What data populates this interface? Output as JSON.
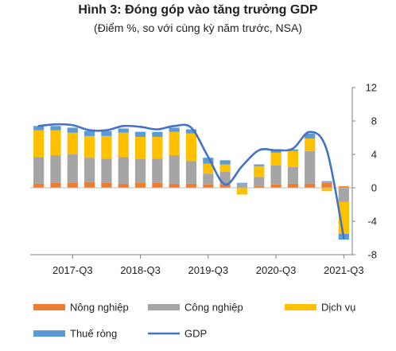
{
  "header": {
    "title": "Hình 3: Đóng góp vào tăng trưởng GDP",
    "subtitle": "(Điểm %, so với cùng kỳ năm trước, NSA)"
  },
  "colors": {
    "nong_nghiep": "#ED7D31",
    "cong_nghiep": "#A5A5A5",
    "dich_vu": "#FFC000",
    "thue_rong": "#5B9BD5",
    "gdp": "#4472C4"
  },
  "chart_data": {
    "type": "bar",
    "stacked": true,
    "categories": [
      "2017-Q1",
      "2017-Q2",
      "2017-Q3",
      "2017-Q4",
      "2018-Q1",
      "2018-Q2",
      "2018-Q3",
      "2018-Q4",
      "2019-Q1",
      "2019-Q2",
      "2019-Q3",
      "2019-Q4",
      "2020-Q1",
      "2020-Q2",
      "2020-Q3",
      "2020-Q4",
      "2021-Q1",
      "2021-Q2",
      "2021-Q3"
    ],
    "x_tick_labels": [
      {
        "category": "2017-Q3",
        "label": "2017-Q3"
      },
      {
        "category": "2018-Q3",
        "label": "2018-Q3"
      },
      {
        "category": "2019-Q3",
        "label": "2019-Q3"
      },
      {
        "category": "2020-Q3",
        "label": "2020-Q3"
      },
      {
        "category": "2021-Q3",
        "label": "2021-Q3"
      }
    ],
    "series": [
      {
        "name": "Nông nghiệp",
        "key": "nong_nghiep",
        "values": [
          0.5,
          0.6,
          0.6,
          0.7,
          0.6,
          0.5,
          0.6,
          0.6,
          0.5,
          0.5,
          0.4,
          0.4,
          0.1,
          0.2,
          0.4,
          0.5,
          0.5,
          0.6,
          0.2
        ]
      },
      {
        "name": "Công nghiệp",
        "key": "cong_nghiep",
        "values": [
          3.2,
          3.3,
          3.4,
          2.9,
          2.9,
          3.2,
          2.9,
          2.9,
          3.4,
          2.7,
          1.3,
          1.5,
          0.4,
          1.1,
          2.3,
          2.0,
          3.9,
          0.1,
          -1.7
        ]
      },
      {
        "name": "Dịch vụ",
        "key": "dich_vu",
        "values": [
          3.2,
          3.0,
          2.6,
          2.6,
          2.7,
          2.9,
          2.6,
          2.6,
          2.8,
          3.3,
          1.2,
          0.9,
          -0.8,
          1.3,
          1.5,
          1.9,
          1.5,
          -0.4,
          -3.8
        ]
      },
      {
        "name": "Thuế ròng",
        "key": "thue_rong",
        "values": [
          0.5,
          0.5,
          0.6,
          0.6,
          0.6,
          0.5,
          0.6,
          0.6,
          0.5,
          0.5,
          0.7,
          0.5,
          0.1,
          0.2,
          0.3,
          0.2,
          0.6,
          0.1,
          -0.7
        ]
      },
      {
        "name": "GDP",
        "key": "gdp",
        "type": "line",
        "values": [
          7.4,
          7.6,
          7.5,
          6.9,
          6.9,
          7.4,
          7.3,
          7.0,
          7.4,
          7.2,
          3.7,
          0.4,
          2.6,
          4.5,
          4.5,
          4.7,
          6.7,
          4.5,
          -6.0
        ]
      }
    ],
    "y_axis": {
      "position": "right",
      "ticks": [
        12,
        8,
        4,
        0,
        -4,
        -8
      ],
      "ylim": [
        -8,
        12
      ]
    },
    "legend": {
      "position": "bottom",
      "rows": [
        [
          {
            "label": "Nông nghiệp",
            "key": "nong_nghiep",
            "kind": "bar"
          },
          {
            "label": "Công nghiệp",
            "key": "cong_nghiep",
            "kind": "bar"
          },
          {
            "label": "Dịch vụ",
            "key": "dich_vu",
            "kind": "bar"
          }
        ],
        [
          {
            "label": "Thuế ròng",
            "key": "thue_rong",
            "kind": "bar"
          },
          {
            "label": "GDP",
            "key": "gdp",
            "kind": "line"
          }
        ]
      ]
    },
    "grid": false
  }
}
